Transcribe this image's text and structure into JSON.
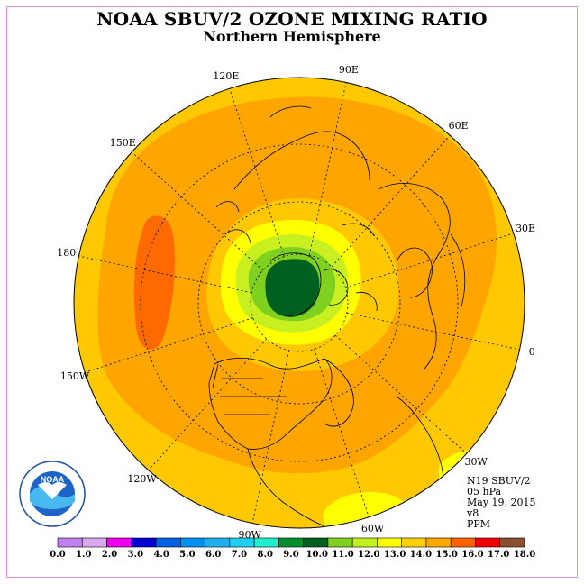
{
  "title": "NOAA SBUV/2 OZONE MIXING RATIO",
  "subtitle": "Northern Hemisphere",
  "longitude_labels": [
    {
      "text": "90E",
      "lon": 90
    },
    {
      "text": "60E",
      "lon": 60
    },
    {
      "text": "30E",
      "lon": 30
    },
    {
      "text": "0",
      "lon": 0
    },
    {
      "text": "30W",
      "lon": -30
    },
    {
      "text": "60W",
      "lon": -60
    },
    {
      "text": "90W",
      "lon": -90
    },
    {
      "text": "120W",
      "lon": -120
    },
    {
      "text": "150W",
      "lon": -150
    },
    {
      "text": "180",
      "lon": 180
    },
    {
      "text": "150E",
      "lon": 150
    },
    {
      "text": "120E",
      "lon": 120
    }
  ],
  "info": {
    "satellite": "N19 SBUV/2",
    "level": "05 hPa",
    "date": "May 19, 2015",
    "version": "v8",
    "units": "PPM"
  },
  "colorbar": {
    "ticks": [
      "0.0",
      "1.0",
      "2.0",
      "3.0",
      "4.0",
      "5.0",
      "6.0",
      "7.0",
      "8.0",
      "9.0",
      "10.0",
      "11.0",
      "12.0",
      "13.0",
      "14.0",
      "15.0",
      "16.0",
      "17.0",
      "18.0"
    ],
    "colors": [
      "#c080f0",
      "#d8a8f0",
      "#f000f0",
      "#0000d0",
      "#0060e0",
      "#0090f0",
      "#20b0f0",
      "#20d0f0",
      "#20f0d0",
      "#009030",
      "#006020",
      "#80d020",
      "#c0f020",
      "#ffff00",
      "#ffd000",
      "#ffa800",
      "#ff6000",
      "#f00000",
      "#8a5030"
    ]
  },
  "chart_data": {
    "type": "polar-stereographic contour map",
    "region": "Northern Hemisphere",
    "variable": "Ozone mixing ratio",
    "units": "PPM",
    "level": "05 hPa",
    "date": "May 19, 2015",
    "contour_interval": 1.0,
    "observed_contour_levels": [
      9.0,
      10.0,
      11.0,
      12.0,
      13.0,
      14.0,
      15.0
    ],
    "features": [
      {
        "desc": "minimum centered near North Pole",
        "value_range": [
          9.0,
          10.0
        ]
      },
      {
        "desc": "mid-latitude ring",
        "value_range": [
          14.0,
          15.0
        ]
      },
      {
        "desc": "maximum over North Pacific near 180",
        "value_range": [
          15.0,
          16.0
        ]
      },
      {
        "desc": "equatorward region",
        "value_range": [
          13.0,
          14.0
        ]
      }
    ]
  },
  "logo": {
    "text": "NOAA"
  }
}
